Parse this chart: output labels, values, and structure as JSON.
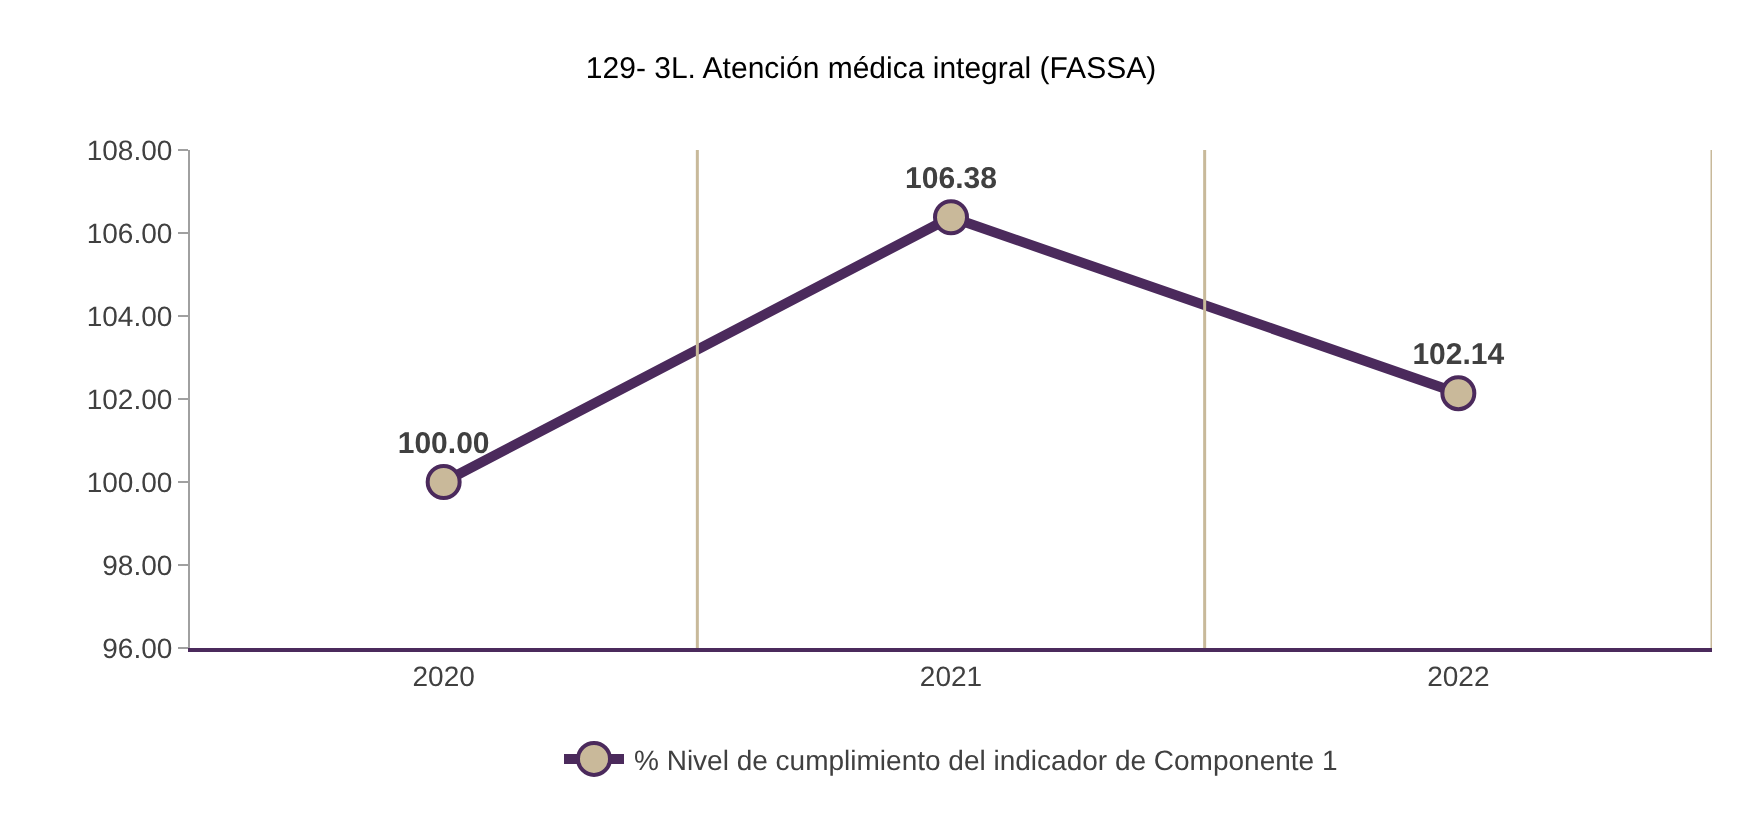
{
  "chart_data": {
    "type": "line",
    "title": "129- 3L. Atención médica integral (FASSA)",
    "categories": [
      "2020",
      "2021",
      "2022"
    ],
    "series": [
      {
        "name": "% Nivel de cumplimiento del indicador de Componente 1",
        "color": "#4b2a5c",
        "values": [
          100.0,
          106.38,
          102.14
        ],
        "value_labels": [
          "100.00",
          "106.38",
          "102.14"
        ]
      }
    ],
    "ylim": [
      96,
      108
    ],
    "yticks": [
      {
        "value": 96,
        "label": "96.00"
      },
      {
        "value": 98,
        "label": "98.00"
      },
      {
        "value": 100,
        "label": "100.00"
      },
      {
        "value": 102,
        "label": "102.00"
      },
      {
        "value": 104,
        "label": "104.00"
      },
      {
        "value": 106,
        "label": "106.00"
      },
      {
        "value": 108,
        "label": "108.00"
      }
    ],
    "grid": "x",
    "legend": "bottom",
    "marker": "circle",
    "line_style": "solid"
  }
}
